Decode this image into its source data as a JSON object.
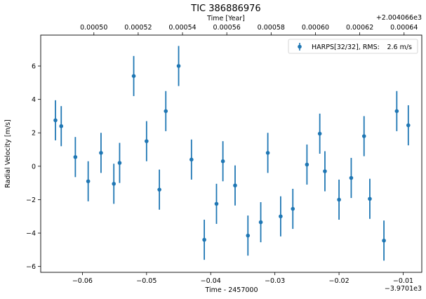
{
  "chart_data": {
    "type": "scatter",
    "title": "TIC 386886976",
    "xlabel": "Time - 2457000",
    "ylabel": "Radial Velocity [m/s]",
    "top_xlabel": "Time [Year]",
    "x_offset_text": "−3.9701e3",
    "top_offset_text": "+2.004066e3",
    "xlim": [
      -0.0665,
      -0.0071
    ],
    "ylim": [
      -6.35,
      7.85
    ],
    "top_xlim": [
      0.000476,
      0.000648
    ],
    "xticks": [
      -0.06,
      -0.05,
      -0.04,
      -0.03,
      -0.02,
      -0.01
    ],
    "xtick_labels": [
      "−0.06",
      "−0.05",
      "−0.04",
      "−0.03",
      "−0.02",
      "−0.01"
    ],
    "yticks": [
      -6,
      -4,
      -2,
      0,
      2,
      4,
      6
    ],
    "ytick_labels": [
      "−6",
      "−4",
      "−2",
      "0",
      "2",
      "4",
      "6"
    ],
    "top_xticks": [
      0.0005,
      0.00052,
      0.00054,
      0.00056,
      0.00058,
      0.0006,
      0.00062,
      0.00064
    ],
    "top_xtick_labels": [
      "0.00050",
      "0.00052",
      "0.00054",
      "0.00056",
      "0.00058",
      "0.00060",
      "0.00062",
      "0.00064"
    ],
    "grid": false,
    "legend_position": "top-right",
    "color": "#1f77b4",
    "series": [
      {
        "name": "HARPS[32/32], RMS:",
        "legend_value": "2.6 m/s",
        "x": [
          -0.0642,
          -0.0633,
          -0.0611,
          -0.0591,
          -0.0571,
          -0.0551,
          -0.0542,
          -0.052,
          -0.05,
          -0.048,
          -0.047,
          -0.045,
          -0.043,
          -0.041,
          -0.0391,
          -0.0381,
          -0.0362,
          -0.0342,
          -0.0322,
          -0.0311,
          -0.0291,
          -0.0272,
          -0.025,
          -0.023,
          -0.0222,
          -0.02,
          -0.0181,
          -0.0161,
          -0.0152,
          -0.013,
          -0.011,
          -0.0092
        ],
        "y": [
          2.75,
          2.4,
          0.55,
          -0.9,
          0.8,
          -1.05,
          0.2,
          5.4,
          1.5,
          -1.4,
          3.3,
          6.0,
          0.4,
          -4.4,
          -2.25,
          0.3,
          -1.15,
          -4.15,
          -3.35,
          0.8,
          -3.0,
          -2.55,
          0.1,
          1.95,
          -0.3,
          -2.0,
          -0.7,
          1.8,
          -1.95,
          -4.45,
          3.3,
          2.45
        ],
        "yerr": 1.2
      }
    ]
  }
}
